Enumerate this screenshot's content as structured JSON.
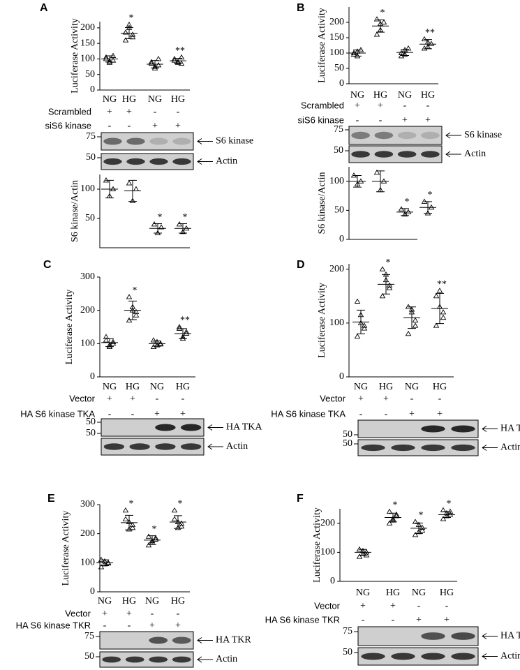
{
  "panels": [
    {
      "letter": "A",
      "condition_rows": [
        {
          "label": "Scrambled",
          "signs": [
            "+",
            "+",
            "-",
            "-"
          ]
        },
        {
          "label": "siS6 kinase",
          "signs": [
            "-",
            "-",
            "+",
            "+"
          ]
        }
      ],
      "blots": [
        {
          "marker": "75",
          "label": "S6 kinase"
        },
        {
          "marker": "50",
          "label": "Actin"
        }
      ]
    },
    {
      "letter": "B",
      "condition_rows": [
        {
          "label": "Scrambled",
          "signs": [
            "+",
            "+",
            "-",
            "-"
          ]
        },
        {
          "label": "siS6 kinase",
          "signs": [
            "-",
            "-",
            "+",
            "+"
          ]
        }
      ],
      "blots": [
        {
          "marker": "75",
          "label": "S6 kinase"
        },
        {
          "marker": "50",
          "label": "Actin"
        }
      ]
    },
    {
      "letter": "C",
      "condition_rows": [
        {
          "label": "Vector",
          "signs": [
            "+",
            "+",
            "-",
            "-"
          ]
        },
        {
          "label": "HA S6 kinase TKA",
          "signs": [
            "-",
            "-",
            "+",
            "+"
          ]
        }
      ],
      "blots": [
        {
          "marker": "50",
          "label": "HA TKA"
        },
        {
          "marker": "50",
          "label": "Actin"
        }
      ]
    },
    {
      "letter": "D",
      "condition_rows": [
        {
          "label": "Vector",
          "signs": [
            "+",
            "+",
            "-",
            "-"
          ]
        },
        {
          "label": "HA S6 kinase TKA",
          "signs": [
            "-",
            "-",
            "+",
            "+"
          ]
        }
      ],
      "blots": [
        {
          "marker": "50",
          "label": "HA TKA"
        },
        {
          "marker": "50",
          "label": "Actin"
        }
      ]
    },
    {
      "letter": "E",
      "condition_rows": [
        {
          "label": "Vector",
          "signs": [
            "+",
            "+",
            "-",
            "-"
          ]
        },
        {
          "label": "HA S6 kinase TKR",
          "signs": [
            "-",
            "-",
            "+",
            "+"
          ]
        }
      ],
      "blots": [
        {
          "marker": "75",
          "label": "HA TKR"
        },
        {
          "marker": "50",
          "label": "Actin"
        }
      ]
    },
    {
      "letter": "F",
      "condition_rows": [
        {
          "label": "Vector",
          "signs": [
            "+",
            "+",
            "-",
            "-"
          ]
        },
        {
          "label": "HA S6 kinase TKR",
          "signs": [
            "-",
            "-",
            "+",
            "+"
          ]
        }
      ],
      "blots": [
        {
          "marker": "75",
          "label": "HA TKR"
        },
        {
          "marker": "50",
          "label": "Actin"
        }
      ]
    }
  ],
  "chart_data": [
    {
      "type": "dot",
      "ylabel": "Luciferase Activity",
      "categories": [
        "NG",
        "HG",
        "NG",
        "HG"
      ],
      "points": [
        [
          100,
          92,
          110,
          105,
          88,
          95
        ],
        [
          185,
          200,
          170,
          160,
          210,
          178
        ],
        [
          85,
          75,
          100,
          90,
          70,
          80
        ],
        [
          95,
          88,
          105,
          100,
          90,
          85
        ]
      ],
      "means": [
        100,
        183,
        83,
        94
      ],
      "sds": [
        10,
        18,
        12,
        8
      ],
      "annotations": [
        null,
        "*",
        null,
        "**"
      ],
      "ylim": [
        0,
        220
      ],
      "yticks": [
        0,
        50,
        100,
        150,
        200
      ],
      "color": "#000000"
    },
    {
      "type": "dot",
      "ylabel": "S6 kinase/Actin",
      "points": [
        [
          115,
          88,
          100
        ],
        [
          110,
          80,
          100
        ],
        [
          40,
          25,
          35
        ],
        [
          40,
          27,
          33
        ]
      ],
      "means": [
        100,
        97,
        33,
        33
      ],
      "sds": [
        15,
        18,
        8,
        8
      ],
      "annotations": [
        null,
        null,
        "*",
        "*"
      ],
      "ylim": [
        0,
        125
      ],
      "yticks": [
        50,
        100
      ],
      "color": "#000000"
    },
    {
      "type": "dot",
      "ylabel": "Luciferase Activity",
      "categories": [
        "NG",
        "HG",
        "NG",
        "HG"
      ],
      "points": [
        [
          100,
          90,
          110,
          95,
          105
        ],
        [
          210,
          175,
          200,
          160,
          195
        ],
        [
          100,
          95,
          115,
          90,
          110
        ],
        [
          145,
          120,
          130,
          115,
          135
        ]
      ],
      "means": [
        100,
        188,
        102,
        129
      ],
      "sds": [
        10,
        20,
        10,
        15
      ],
      "annotations": [
        null,
        "*",
        null,
        "**"
      ],
      "ylim": [
        0,
        250
      ],
      "yticks": [
        0,
        50,
        100,
        150,
        200
      ],
      "color": "#000000"
    },
    {
      "type": "dot",
      "ylabel": "S6 kinase/Actin",
      "points": [
        [
          110,
          95,
          100
        ],
        [
          115,
          85,
          100
        ],
        [
          52,
          43,
          47
        ],
        [
          65,
          45,
          55
        ]
      ],
      "means": [
        100,
        100,
        47,
        55
      ],
      "sds": [
        10,
        18,
        6,
        10
      ],
      "annotations": [
        null,
        null,
        "*",
        "*"
      ],
      "ylim": [
        0,
        125
      ],
      "yticks": [
        0,
        50,
        100
      ],
      "color": "#000000"
    },
    {
      "type": "dot",
      "ylabel": "Luciferase Activity",
      "categories": [
        "NG",
        "HG",
        "NG",
        "HG"
      ],
      "points": [
        [
          110,
          95,
          100,
          120,
          90,
          105
        ],
        [
          240,
          200,
          185,
          170,
          210,
          195
        ],
        [
          110,
          95,
          100,
          90,
          105,
          98
        ],
        [
          145,
          120,
          130,
          150,
          115,
          135
        ]
      ],
      "means": [
        103,
        200,
        100,
        130
      ],
      "sds": [
        12,
        28,
        8,
        15
      ],
      "annotations": [
        null,
        "*",
        null,
        "**"
      ],
      "ylim": [
        0,
        300
      ],
      "yticks": [
        0,
        100,
        200,
        300
      ],
      "color": "#000000"
    },
    {
      "type": "dot",
      "ylabel": "Luciferase Activity",
      "categories": [
        "NG",
        "HG",
        "NG",
        "HG"
      ],
      "points": [
        [
          140,
          100,
          90,
          75,
          115,
          95
        ],
        [
          200,
          180,
          165,
          150,
          190,
          170
        ],
        [
          130,
          120,
          95,
          80,
          125,
          105
        ],
        [
          150,
          160,
          120,
          95,
          130,
          110
        ]
      ],
      "means": [
        102,
        172,
        110,
        127
      ],
      "sds": [
        22,
        18,
        20,
        28
      ],
      "annotations": [
        null,
        "*",
        null,
        "**"
      ],
      "ylim": [
        0,
        210
      ],
      "yticks": [
        0,
        100,
        200
      ],
      "color": "#000000"
    },
    {
      "type": "dot",
      "ylabel": "Luciferase Activity",
      "categories": [
        "NG",
        "HG",
        "NG",
        "HG"
      ],
      "points": [
        [
          110,
          95,
          100,
          85,
          105,
          98
        ],
        [
          280,
          240,
          220,
          250,
          215,
          230
        ],
        [
          190,
          170,
          185,
          160,
          175,
          180
        ],
        [
          280,
          240,
          225,
          250,
          220,
          235
        ]
      ],
      "means": [
        100,
        238,
        178,
        240
      ],
      "sds": [
        10,
        25,
        15,
        22
      ],
      "annotations": [
        null,
        "*",
        "*",
        "*"
      ],
      "ylim": [
        0,
        300
      ],
      "yticks": [
        0,
        100,
        200,
        300
      ],
      "color": "#000000"
    },
    {
      "type": "dot",
      "ylabel": "Luciferase Activity",
      "categories": [
        "NG",
        "HG",
        "NG",
        "HG"
      ],
      "points": [
        [
          110,
          95,
          100,
          85,
          105,
          90
        ],
        [
          240,
          210,
          225,
          200,
          215,
          230
        ],
        [
          205,
          170,
          185,
          160,
          195,
          175
        ],
        [
          245,
          225,
          230,
          215,
          235,
          240
        ]
      ],
      "means": [
        100,
        220,
        183,
        230
      ],
      "sds": [
        10,
        15,
        18,
        10
      ],
      "annotations": [
        null,
        "*",
        "*",
        "*"
      ],
      "ylim": [
        0,
        250
      ],
      "yticks": [
        0,
        100,
        200
      ],
      "color": "#000000"
    }
  ]
}
